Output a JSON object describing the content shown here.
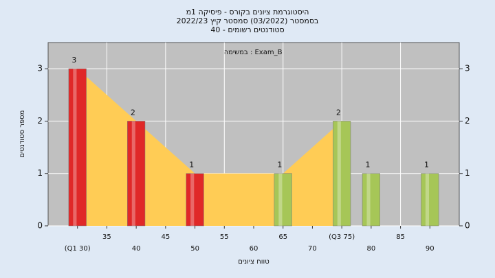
{
  "chart_data": {
    "type": "histogram",
    "title": "היסטוגרמת ציונים בקורס - פיסיקה 1מ",
    "subtitle": "בסמסטר (03/2022) סמסטר קיץ 2022/23",
    "subtitle2": "סטודנטים רשומים - 40",
    "annotation": "במשימה : Exam_B",
    "y_label": "מספר סטודנטים",
    "x_label": "טווח ציונים",
    "x": [
      30,
      40,
      50,
      65,
      75,
      80,
      90
    ],
    "values": [
      3,
      2,
      1,
      1,
      2,
      1,
      1
    ],
    "colors": [
      "#e02828",
      "#e02828",
      "#e02828",
      "#a6c657",
      "#a6c657",
      "#a6c657",
      "#a6c657"
    ],
    "area": {
      "x": [
        30,
        40,
        50,
        65,
        75
      ],
      "values": [
        3,
        2,
        1,
        1,
        2
      ],
      "color": "#ffcc55"
    },
    "xlim": [
      25,
      95
    ],
    "xticks": [
      {
        "value": 30,
        "label": "(Q1 30)"
      },
      35,
      40,
      45,
      50,
      55,
      60,
      65,
      70,
      {
        "value": 75,
        "label": "(Q3 75)"
      },
      80,
      85,
      90
    ],
    "ylim": [
      0,
      3.5
    ],
    "yticks": [
      0,
      1,
      2,
      3
    ],
    "grid": true
  }
}
